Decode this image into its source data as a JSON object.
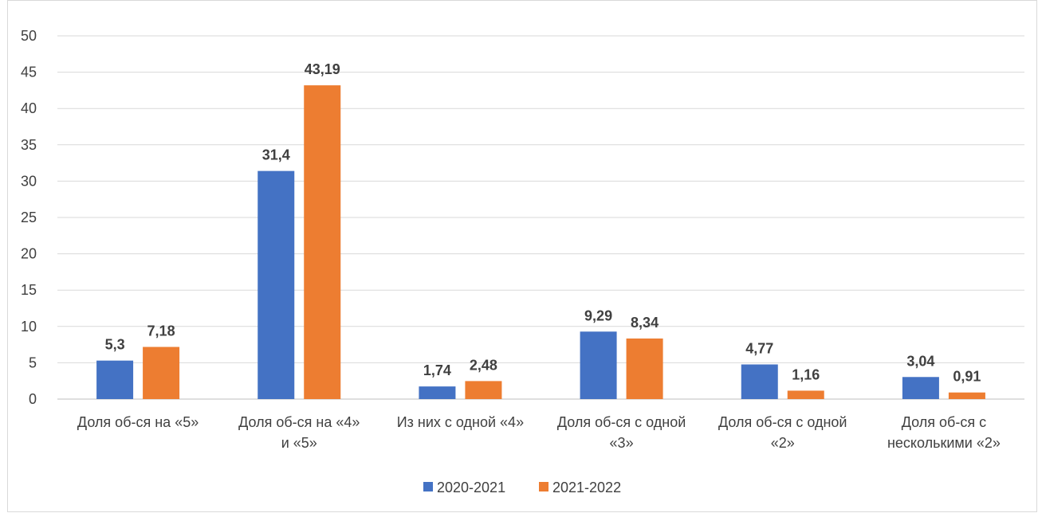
{
  "chart_data": {
    "type": "bar",
    "title": "",
    "xlabel": "",
    "ylabel": "",
    "ylim": [
      0,
      50
    ],
    "yticks": [
      "0",
      "5",
      "10",
      "15",
      "20",
      "25",
      "30",
      "35",
      "40",
      "45",
      "50"
    ],
    "grid": true,
    "legend_position": "bottom",
    "categories": [
      [
        "Доля об-ся на «5»"
      ],
      [
        "Доля об-ся на «4»",
        "и  «5»"
      ],
      [
        "Из них с одной «4»"
      ],
      [
        "Доля об-ся с одной",
        "«3»"
      ],
      [
        "Доля об-ся с одной",
        "«2»"
      ],
      [
        "Доля об-ся с",
        "несколькими «2»"
      ]
    ],
    "series": [
      {
        "name": "2020-2021",
        "color": "#4472C4",
        "values": [
          5.3,
          31.4,
          1.74,
          9.29,
          4.77,
          3.04
        ],
        "labels": [
          "5,3",
          "31,4",
          "1,74",
          "9,29",
          "4,77",
          "3,04"
        ]
      },
      {
        "name": "2021-2022",
        "color": "#ED7D31",
        "values": [
          7.18,
          43.19,
          2.48,
          8.34,
          1.16,
          0.91
        ],
        "labels": [
          "7,18",
          "43,19",
          "2,48",
          "8,34",
          "1,16",
          "0,91"
        ]
      }
    ]
  }
}
